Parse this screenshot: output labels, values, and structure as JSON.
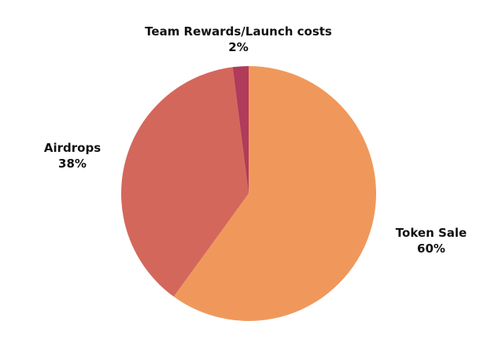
{
  "chart_data": {
    "type": "pie",
    "title": "",
    "start": "top",
    "direction": "clockwise",
    "slices": [
      {
        "label": "Token Sale",
        "value": 60,
        "value_label": "60%",
        "color": "#f0985b"
      },
      {
        "label": "Airdrops",
        "value": 38,
        "value_label": "38%",
        "color": "#d4675b"
      },
      {
        "label": "Team Rewards/Launch costs",
        "value": 2,
        "value_label": "2%",
        "color": "#b03b5a"
      }
    ]
  }
}
